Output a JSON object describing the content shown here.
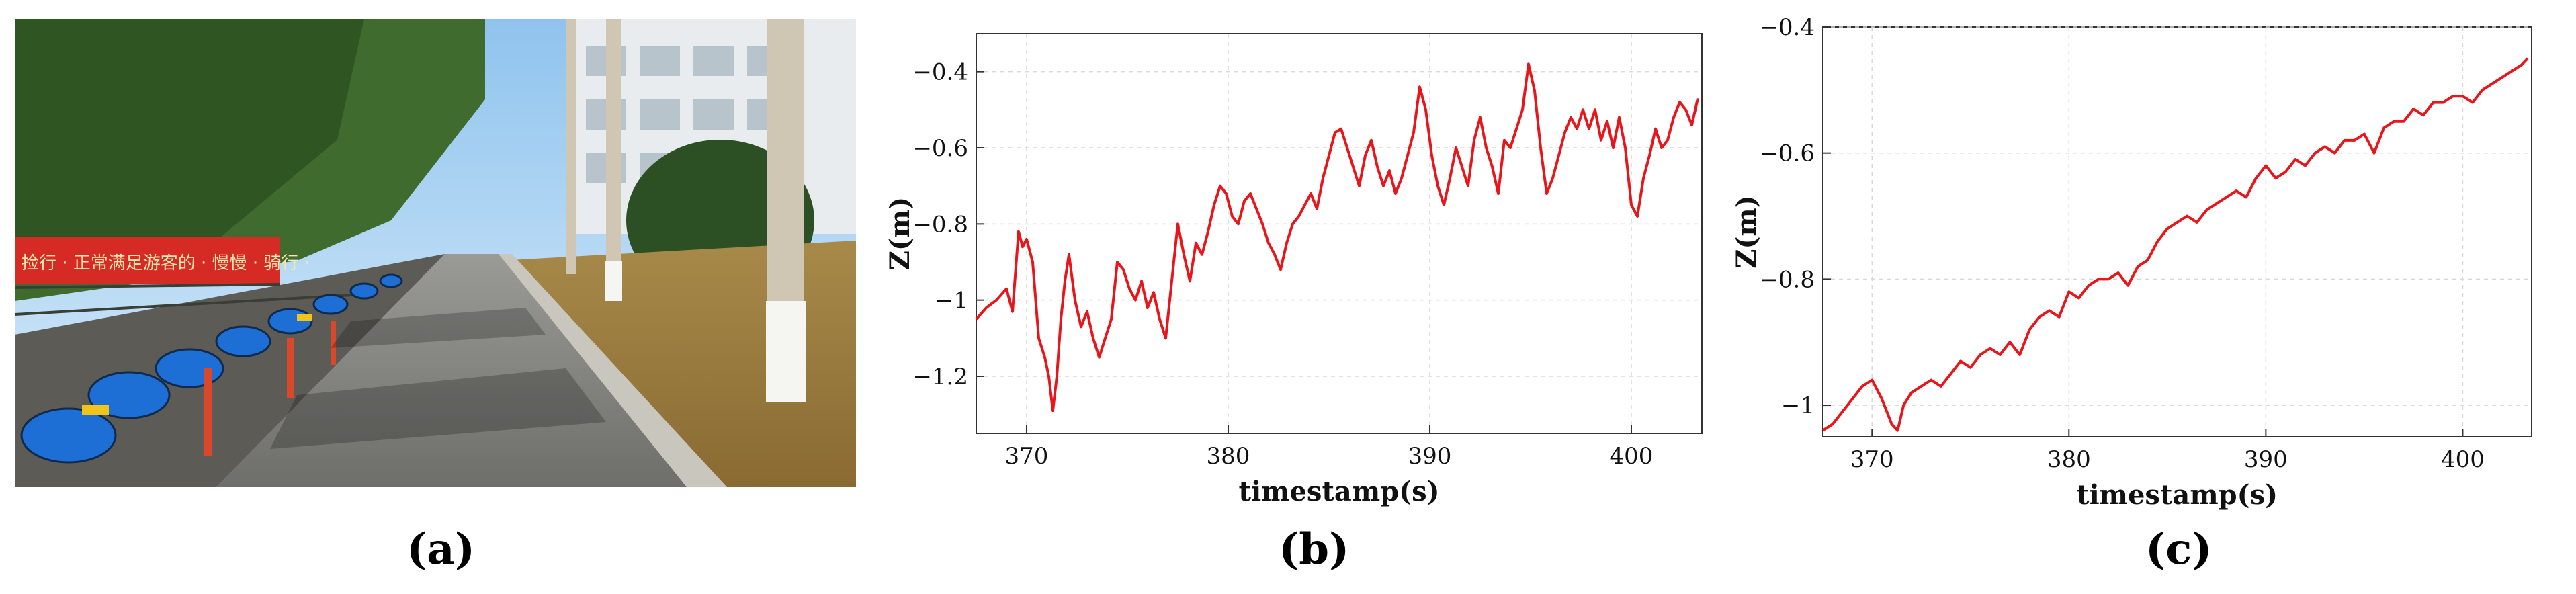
{
  "panels": {
    "a": {
      "label": "(a)",
      "banner_text": "捡行 · 正常满足游客的 · 慢慢 · 骑行 ·"
    },
    "b": {
      "label": "(b)"
    },
    "c": {
      "label": "(c)"
    }
  },
  "colors": {
    "line": "#e8161b",
    "grid": "#d9d9d9",
    "axis": "#333333"
  },
  "chart_data": [
    {
      "id": "b",
      "type": "line",
      "title": "",
      "xlabel": "timestamp(s)",
      "ylabel": "Z(m)",
      "xlim": [
        367.5,
        403.5
      ],
      "ylim": [
        -1.35,
        -0.3
      ],
      "xticks": [
        370,
        380,
        390,
        400
      ],
      "yticks": [
        -0.4,
        -0.6,
        -0.8,
        -1,
        -1.2
      ],
      "ytick_labels": [
        "−0.4",
        "−0.6",
        "−0.8",
        "−1",
        "−1.2"
      ],
      "grid": true,
      "series": [
        {
          "x": [
            367.5,
            368.0,
            368.5,
            369.0,
            369.3,
            369.6,
            369.8,
            370.0,
            370.3,
            370.6,
            370.9,
            371.1,
            371.3,
            371.5,
            371.7,
            371.9,
            372.1,
            372.4,
            372.7,
            373.0,
            373.3,
            373.6,
            373.9,
            374.2,
            374.5,
            374.8,
            375.1,
            375.4,
            375.7,
            376.0,
            376.3,
            376.6,
            376.9,
            377.2,
            377.5,
            377.8,
            378.1,
            378.4,
            378.7,
            379.0,
            379.3,
            379.6,
            379.9,
            380.2,
            380.5,
            380.8,
            381.1,
            381.4,
            381.7,
            382.0,
            382.3,
            382.6,
            382.9,
            383.2,
            383.5,
            383.8,
            384.1,
            384.4,
            384.7,
            385.0,
            385.3,
            385.6,
            385.9,
            386.2,
            386.5,
            386.8,
            387.1,
            387.4,
            387.7,
            388.0,
            388.3,
            388.6,
            388.9,
            389.2,
            389.5,
            389.8,
            390.1,
            390.4,
            390.7,
            391.0,
            391.3,
            391.6,
            391.9,
            392.2,
            392.5,
            392.8,
            393.1,
            393.4,
            393.7,
            394.0,
            394.3,
            394.6,
            394.9,
            395.2,
            395.5,
            395.8,
            396.1,
            396.4,
            396.7,
            397.0,
            397.3,
            397.6,
            397.9,
            398.2,
            398.5,
            398.8,
            399.1,
            399.4,
            399.7,
            400.0,
            400.3,
            400.6,
            400.9,
            401.2,
            401.5,
            401.8,
            402.1,
            402.4,
            402.7,
            403.0,
            403.3
          ],
          "y": [
            -1.05,
            -1.02,
            -1.0,
            -0.97,
            -1.03,
            -0.82,
            -0.86,
            -0.84,
            -0.9,
            -1.1,
            -1.15,
            -1.2,
            -1.29,
            -1.2,
            -1.05,
            -0.95,
            -0.88,
            -1.0,
            -1.07,
            -1.03,
            -1.1,
            -1.15,
            -1.1,
            -1.05,
            -0.9,
            -0.92,
            -0.97,
            -1.0,
            -0.95,
            -1.02,
            -0.98,
            -1.05,
            -1.1,
            -0.95,
            -0.8,
            -0.88,
            -0.95,
            -0.85,
            -0.88,
            -0.82,
            -0.75,
            -0.7,
            -0.72,
            -0.78,
            -0.8,
            -0.74,
            -0.72,
            -0.76,
            -0.8,
            -0.85,
            -0.88,
            -0.92,
            -0.85,
            -0.8,
            -0.78,
            -0.75,
            -0.72,
            -0.76,
            -0.68,
            -0.62,
            -0.56,
            -0.55,
            -0.6,
            -0.65,
            -0.7,
            -0.62,
            -0.58,
            -0.65,
            -0.7,
            -0.66,
            -0.72,
            -0.68,
            -0.62,
            -0.56,
            -0.44,
            -0.5,
            -0.62,
            -0.7,
            -0.75,
            -0.68,
            -0.6,
            -0.65,
            -0.7,
            -0.58,
            -0.52,
            -0.6,
            -0.65,
            -0.72,
            -0.58,
            -0.6,
            -0.55,
            -0.5,
            -0.38,
            -0.45,
            -0.6,
            -0.72,
            -0.68,
            -0.62,
            -0.56,
            -0.52,
            -0.55,
            -0.5,
            -0.55,
            -0.5,
            -0.58,
            -0.53,
            -0.6,
            -0.52,
            -0.6,
            -0.75,
            -0.78,
            -0.68,
            -0.62,
            -0.55,
            -0.6,
            -0.58,
            -0.52,
            -0.48,
            -0.5,
            -0.54,
            -0.47
          ]
        }
      ]
    },
    {
      "id": "c",
      "type": "line",
      "title": "",
      "xlabel": "timestamp(s)",
      "ylabel": "Z(m)",
      "xlim": [
        367.5,
        403.5
      ],
      "ylim": [
        -1.05,
        -0.4
      ],
      "xticks": [
        370,
        380,
        390,
        400
      ],
      "yticks": [
        -0.4,
        -0.6,
        -0.8,
        -1
      ],
      "ytick_labels": [
        "−0.4",
        "−0.6",
        "−0.8",
        "−1"
      ],
      "grid": true,
      "series": [
        {
          "x": [
            367.5,
            368.0,
            368.5,
            369.0,
            369.5,
            370.0,
            370.5,
            371.0,
            371.3,
            371.6,
            372.0,
            372.5,
            373.0,
            373.5,
            374.0,
            374.5,
            375.0,
            375.5,
            376.0,
            376.5,
            377.0,
            377.5,
            378.0,
            378.5,
            379.0,
            379.5,
            380.0,
            380.5,
            381.0,
            381.5,
            382.0,
            382.5,
            383.0,
            383.5,
            384.0,
            384.5,
            385.0,
            385.5,
            386.0,
            386.5,
            387.0,
            387.5,
            388.0,
            388.5,
            389.0,
            389.5,
            390.0,
            390.5,
            391.0,
            391.5,
            392.0,
            392.5,
            393.0,
            393.5,
            394.0,
            394.5,
            395.0,
            395.5,
            396.0,
            396.5,
            397.0,
            397.5,
            398.0,
            398.5,
            399.0,
            399.5,
            400.0,
            400.5,
            401.0,
            401.5,
            402.0,
            402.5,
            403.0,
            403.3
          ],
          "y": [
            -1.04,
            -1.03,
            -1.01,
            -0.99,
            -0.97,
            -0.96,
            -0.99,
            -1.03,
            -1.04,
            -1.0,
            -0.98,
            -0.97,
            -0.96,
            -0.97,
            -0.95,
            -0.93,
            -0.94,
            -0.92,
            -0.91,
            -0.92,
            -0.9,
            -0.92,
            -0.88,
            -0.86,
            -0.85,
            -0.86,
            -0.82,
            -0.83,
            -0.81,
            -0.8,
            -0.8,
            -0.79,
            -0.81,
            -0.78,
            -0.77,
            -0.74,
            -0.72,
            -0.71,
            -0.7,
            -0.71,
            -0.69,
            -0.68,
            -0.67,
            -0.66,
            -0.67,
            -0.64,
            -0.62,
            -0.64,
            -0.63,
            -0.61,
            -0.62,
            -0.6,
            -0.59,
            -0.6,
            -0.58,
            -0.58,
            -0.57,
            -0.6,
            -0.56,
            -0.55,
            -0.55,
            -0.53,
            -0.54,
            -0.52,
            -0.52,
            -0.51,
            -0.51,
            -0.52,
            -0.5,
            -0.49,
            -0.48,
            -0.47,
            -0.46,
            -0.45
          ]
        }
      ]
    }
  ]
}
